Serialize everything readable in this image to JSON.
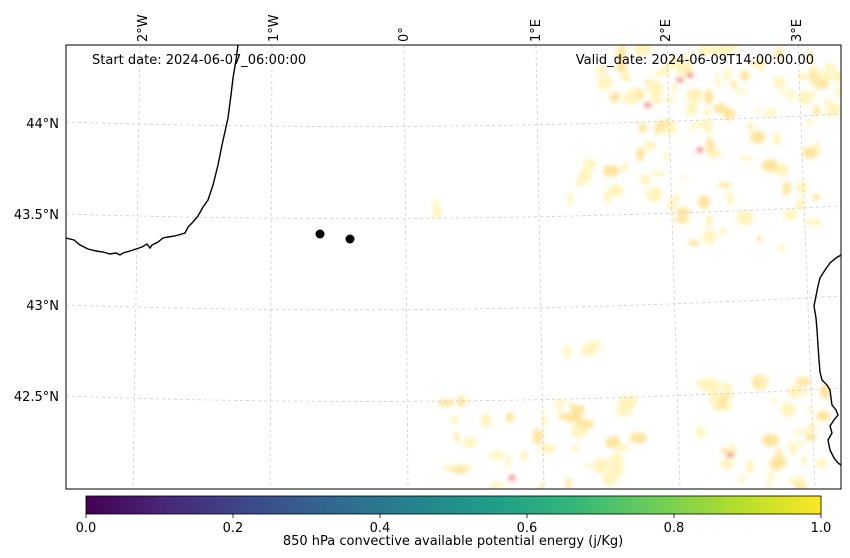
{
  "header": {
    "start_date": "Start date: 2024-06-07_06:00:00",
    "valid_date": "Valid_date: 2024-06-09T14:00:00.00"
  },
  "axes": {
    "longitude_labels": [
      "2°W",
      "1°W",
      "0°",
      "1°E",
      "2°E",
      "3°E"
    ],
    "latitude_labels": [
      "44°N",
      "43.5°N",
      "43°N",
      "42.5°N"
    ]
  },
  "markers": [
    {
      "name": "point-1"
    },
    {
      "name": "point-2"
    }
  ],
  "colorbar": {
    "label": "850 hPa convective available potential energy (j/Kg)",
    "ticks": [
      "0.0",
      "0.2",
      "0.4",
      "0.6",
      "0.8",
      "1.0"
    ],
    "range": [
      0.0,
      1.0
    ],
    "colormap": "viridis",
    "stops": [
      "#440154",
      "#482878",
      "#3e4989",
      "#31688e",
      "#26828e",
      "#1f9e89",
      "#35b779",
      "#6ece58",
      "#b5de2b",
      "#fde725"
    ]
  },
  "colors": {
    "coastline": "#000000",
    "gridline": "#cccccc",
    "field_low": "#fff3b0",
    "field_mid": "#fde08a",
    "field_high": "#e8504a"
  }
}
